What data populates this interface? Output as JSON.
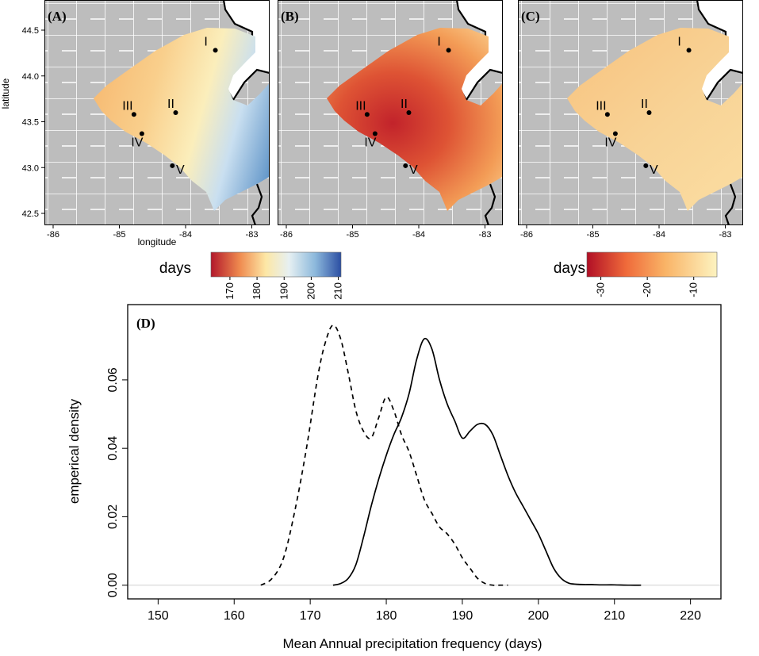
{
  "figure": {
    "panels": [
      {
        "id": "A",
        "label": "(A)",
        "variant": "A"
      },
      {
        "id": "B",
        "label": "(B)",
        "variant": "B"
      },
      {
        "id": "C",
        "label": "(C)",
        "variant": "C"
      }
    ],
    "map_lat_ticks": [
      "44.5",
      "44.0",
      "43.5",
      "43.0",
      "42.5"
    ],
    "map_lon_ticks": [
      "-86",
      "-85",
      "-84",
      "-83"
    ],
    "map_xlabel": "longitude",
    "map_ylabel": "latitude",
    "sites": [
      {
        "name": "I",
        "lon": -83.55,
        "lat": 44.28
      },
      {
        "name": "II",
        "lon": -84.15,
        "lat": 43.6
      },
      {
        "name": "III",
        "lon": -84.78,
        "lat": 43.58
      },
      {
        "name": "IV",
        "lon": -84.66,
        "lat": 43.37
      },
      {
        "name": "V",
        "lon": -84.2,
        "lat": 43.02
      }
    ],
    "colorbar_left": {
      "title": "days",
      "ticks": [
        "170",
        "180",
        "190",
        "200",
        "210"
      ],
      "range": [
        163,
        211
      ],
      "palette": "red-yellow-blue"
    },
    "colorbar_right": {
      "title": "days",
      "ticks": [
        "-30",
        "-20",
        "-10"
      ],
      "range": [
        -33,
        -5
      ],
      "palette": "red-yellow"
    },
    "colors": {
      "map_background": "#bdbdbd",
      "county_lines": "#ffffff",
      "state_lines": "#000000",
      "lake": "#ffffff"
    }
  },
  "chart_data": {
    "type": "line",
    "panel_label": "(D)",
    "xlabel": "Mean Annual precipitation frequency (days)",
    "ylabel": "emperical density",
    "xlim": [
      146,
      224
    ],
    "ylim": [
      -0.004,
      0.082
    ],
    "x_ticks": [
      "150",
      "160",
      "170",
      "180",
      "190",
      "200",
      "210",
      "220"
    ],
    "y_ticks": [
      "0.00",
      "0.02",
      "0.04",
      "0.06"
    ],
    "series": [
      {
        "name": "dashed",
        "style": "dashed",
        "x": [
          163.5,
          165,
          166.5,
          168,
          169.5,
          171,
          172,
          173,
          174,
          175,
          176,
          177,
          178,
          179,
          180,
          181,
          182,
          183,
          184,
          185,
          186,
          187,
          188,
          189,
          190,
          191,
          192,
          193,
          194,
          195,
          196
        ],
        "y": [
          0.0,
          0.002,
          0.008,
          0.022,
          0.04,
          0.061,
          0.071,
          0.076,
          0.072,
          0.062,
          0.051,
          0.045,
          0.043,
          0.049,
          0.055,
          0.051,
          0.044,
          0.039,
          0.032,
          0.025,
          0.021,
          0.017,
          0.015,
          0.012,
          0.008,
          0.005,
          0.002,
          0.0005,
          0.0,
          0.0,
          0.0
        ]
      },
      {
        "name": "solid",
        "style": "solid",
        "x": [
          173,
          174,
          175,
          176,
          177,
          178,
          179,
          180,
          181,
          182,
          183,
          184,
          185,
          186,
          187,
          188,
          189,
          190,
          191,
          192,
          193,
          194,
          195,
          196,
          197,
          198,
          199,
          200,
          201,
          202,
          203,
          204,
          205,
          206,
          207,
          208,
          210,
          212,
          213.5
        ],
        "y": [
          0.0,
          0.0005,
          0.002,
          0.006,
          0.014,
          0.023,
          0.031,
          0.038,
          0.044,
          0.049,
          0.056,
          0.066,
          0.072,
          0.069,
          0.06,
          0.053,
          0.048,
          0.043,
          0.045,
          0.047,
          0.047,
          0.044,
          0.038,
          0.032,
          0.027,
          0.023,
          0.019,
          0.015,
          0.01,
          0.005,
          0.002,
          0.0006,
          0.0003,
          0.0002,
          0.0002,
          0.0001,
          0.0001,
          0.0,
          0.0
        ]
      }
    ]
  }
}
